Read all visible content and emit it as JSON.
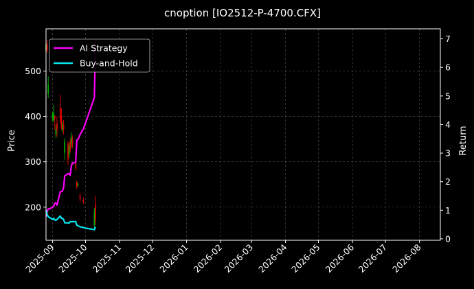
{
  "chart_data": {
    "type": "candlestick+line",
    "title": "cnoption [IO2512-P-4700.CFX]",
    "ylabel_left": "Price",
    "ylabel_right": "Return",
    "xlabel": "",
    "xlim": [
      "2025-08-26",
      "2026-08-20"
    ],
    "ylim_left": [
      127,
      593
    ],
    "ylim_right": [
      -0.05,
      7.35
    ],
    "x_ticks": [
      "2025-09",
      "2025-10",
      "2025-11",
      "2025-12",
      "2026-01",
      "2026-02",
      "2026-03",
      "2026-04",
      "2026-05",
      "2026-06",
      "2026-07",
      "2026-08"
    ],
    "x_tick_dates": [
      "2025-09-01",
      "2025-10-01",
      "2025-11-01",
      "2025-12-01",
      "2026-01-01",
      "2026-02-01",
      "2026-03-01",
      "2026-04-01",
      "2026-05-01",
      "2026-06-01",
      "2026-07-01",
      "2026-08-01"
    ],
    "y_ticks_left": [
      200,
      300,
      400,
      500
    ],
    "y_ticks_right": [
      0,
      1,
      2,
      3,
      4,
      5,
      6,
      7
    ],
    "grid": true,
    "legend_position": "top-left",
    "candle_colors": {
      "up": "#00aa00",
      "down": "#dd0000"
    },
    "candles": [
      {
        "date": "2025-08-26",
        "open": 545,
        "close": 560,
        "high": 580,
        "low": 535
      },
      {
        "date": "2025-08-27",
        "open": 560,
        "close": 545,
        "high": 568,
        "low": 540
      },
      {
        "date": "2025-08-28",
        "open": 450,
        "close": 470,
        "high": 488,
        "low": 440
      },
      {
        "date": "2025-09-01",
        "open": 395,
        "close": 405,
        "high": 410,
        "low": 388
      },
      {
        "date": "2025-09-02",
        "open": 392,
        "close": 408,
        "high": 425,
        "low": 388
      },
      {
        "date": "2025-09-03",
        "open": 400,
        "close": 395,
        "high": 402,
        "low": 370
      },
      {
        "date": "2025-09-04",
        "open": 360,
        "close": 372,
        "high": 382,
        "low": 352
      },
      {
        "date": "2025-09-05",
        "open": 385,
        "close": 370,
        "high": 400,
        "low": 355
      },
      {
        "date": "2025-09-08",
        "open": 420,
        "close": 395,
        "high": 448,
        "low": 385
      },
      {
        "date": "2025-09-09",
        "open": 400,
        "close": 375,
        "high": 418,
        "low": 370
      },
      {
        "date": "2025-09-10",
        "open": 370,
        "close": 382,
        "high": 388,
        "low": 365
      },
      {
        "date": "2025-09-11",
        "open": 380,
        "close": 372,
        "high": 392,
        "low": 360
      },
      {
        "date": "2025-09-12",
        "open": 320,
        "close": 345,
        "high": 352,
        "low": 305
      },
      {
        "date": "2025-09-15",
        "open": 340,
        "close": 305,
        "high": 345,
        "low": 292
      },
      {
        "date": "2025-09-16",
        "open": 315,
        "close": 335,
        "high": 342,
        "low": 308
      },
      {
        "date": "2025-09-17",
        "open": 345,
        "close": 325,
        "high": 352,
        "low": 320
      },
      {
        "date": "2025-09-18",
        "open": 340,
        "close": 355,
        "high": 365,
        "low": 330
      },
      {
        "date": "2025-09-19",
        "open": 350,
        "close": 335,
        "high": 358,
        "low": 330
      },
      {
        "date": "2025-09-22",
        "open": 300,
        "close": 285,
        "high": 305,
        "low": 280
      },
      {
        "date": "2025-09-23",
        "open": 255,
        "close": 245,
        "high": 258,
        "low": 240
      },
      {
        "date": "2025-09-24",
        "open": 248,
        "close": 252,
        "high": 255,
        "low": 245
      },
      {
        "date": "2025-09-26",
        "open": 225,
        "close": 218,
        "high": 232,
        "low": 212
      },
      {
        "date": "2025-09-29",
        "open": 215,
        "close": 210,
        "high": 222,
        "low": 207
      },
      {
        "date": "2025-10-09",
        "open": 160,
        "close": 190,
        "high": 198,
        "low": 155
      },
      {
        "date": "2025-10-10",
        "open": 205,
        "close": 170,
        "high": 225,
        "low": 160
      }
    ],
    "series": [
      {
        "name": "AI Strategy",
        "color": "#ff00ff",
        "points": [
          [
            "2025-08-26",
            0.78
          ],
          [
            "2025-08-27",
            0.95
          ],
          [
            "2025-08-28",
            1.05
          ],
          [
            "2025-08-29",
            1.05
          ],
          [
            "2025-09-01",
            1.1
          ],
          [
            "2025-09-02",
            1.15
          ],
          [
            "2025-09-03",
            1.25
          ],
          [
            "2025-09-04",
            1.25
          ],
          [
            "2025-09-05",
            1.18
          ],
          [
            "2025-09-08",
            1.65
          ],
          [
            "2025-09-09",
            1.65
          ],
          [
            "2025-09-10",
            1.68
          ],
          [
            "2025-09-11",
            1.8
          ],
          [
            "2025-09-12",
            2.2
          ],
          [
            "2025-09-15",
            2.28
          ],
          [
            "2025-09-16",
            2.28
          ],
          [
            "2025-09-17",
            2.22
          ],
          [
            "2025-09-18",
            2.55
          ],
          [
            "2025-09-19",
            2.65
          ],
          [
            "2025-09-22",
            2.68
          ],
          [
            "2025-09-23",
            3.45
          ],
          [
            "2025-09-24",
            3.48
          ],
          [
            "2025-09-25",
            3.55
          ],
          [
            "2025-09-26",
            3.65
          ],
          [
            "2025-09-29",
            3.85
          ],
          [
            "2025-09-30",
            3.95
          ],
          [
            "2025-10-09",
            4.95
          ],
          [
            "2025-10-10",
            6.9
          ]
        ]
      },
      {
        "name": "Buy-and-Hold",
        "color": "#00e5ee",
        "points": [
          [
            "2025-08-26",
            1.0
          ],
          [
            "2025-08-27",
            0.85
          ],
          [
            "2025-08-28",
            0.78
          ],
          [
            "2025-08-29",
            0.75
          ],
          [
            "2025-09-01",
            0.68
          ],
          [
            "2025-09-02",
            0.72
          ],
          [
            "2025-09-03",
            0.66
          ],
          [
            "2025-09-04",
            0.65
          ],
          [
            "2025-09-05",
            0.68
          ],
          [
            "2025-09-08",
            0.8
          ],
          [
            "2025-09-09",
            0.72
          ],
          [
            "2025-09-10",
            0.72
          ],
          [
            "2025-09-11",
            0.68
          ],
          [
            "2025-09-12",
            0.56
          ],
          [
            "2025-09-15",
            0.56
          ],
          [
            "2025-09-16",
            0.55
          ],
          [
            "2025-09-17",
            0.6
          ],
          [
            "2025-09-18",
            0.6
          ],
          [
            "2025-09-19",
            0.6
          ],
          [
            "2025-09-22",
            0.6
          ],
          [
            "2025-09-23",
            0.48
          ],
          [
            "2025-09-24",
            0.46
          ],
          [
            "2025-09-26",
            0.42
          ],
          [
            "2025-09-29",
            0.4
          ],
          [
            "2025-09-30",
            0.38
          ],
          [
            "2025-10-09",
            0.32
          ],
          [
            "2025-10-10",
            0.42
          ]
        ]
      }
    ]
  }
}
